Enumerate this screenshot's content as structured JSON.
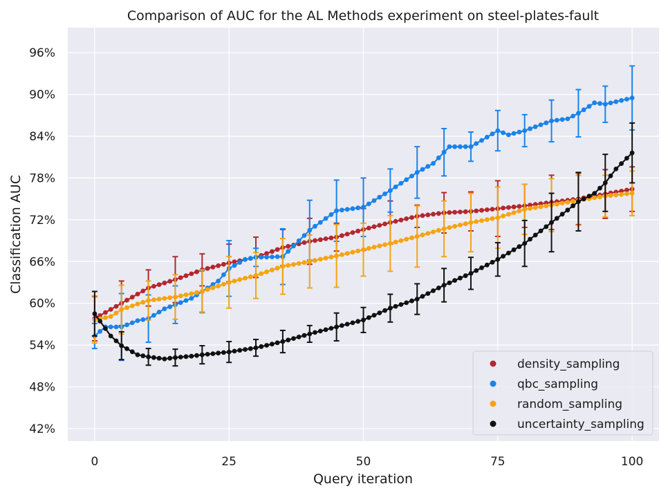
{
  "chart_data": {
    "type": "scatter",
    "title": "Comparison of AUC for the AL Methods experiment on steel-plates-fault",
    "xlabel": "Query iteration",
    "ylabel": "Classification AUC",
    "xlim": [
      -5,
      105
    ],
    "ylim": [
      40.2,
      99.6
    ],
    "xticks": [
      0,
      25,
      50,
      75,
      100
    ],
    "xtick_labels": [
      "0",
      "25",
      "50",
      "75",
      "100"
    ],
    "yticks": [
      42,
      48,
      54,
      60,
      66,
      72,
      78,
      84,
      90,
      96
    ],
    "ytick_labels": [
      "42%",
      "48%",
      "54%",
      "60%",
      "66%",
      "72%",
      "78%",
      "84%",
      "90%",
      "96%"
    ],
    "grid": true,
    "legend_position": "lower-right",
    "series": [
      {
        "name": "density_sampling",
        "color": "#b2282e",
        "anchors_x": [
          0,
          5,
          10,
          15,
          20,
          25,
          30,
          35,
          40,
          45,
          50,
          55,
          60,
          65,
          70,
          75,
          80,
          85,
          90,
          95,
          100
        ],
        "anchors_y": [
          57.8,
          60.0,
          62.2,
          63.4,
          64.8,
          65.8,
          66.6,
          68.0,
          68.9,
          69.5,
          70.6,
          71.6,
          72.5,
          73.0,
          73.2,
          73.6,
          74.0,
          74.5,
          75.0,
          75.7,
          76.4
        ],
        "error_x": [
          0,
          5,
          10,
          15,
          20,
          25,
          30,
          35,
          40,
          45,
          50,
          55,
          60,
          65,
          70,
          75,
          80,
          85,
          90,
          95,
          100
        ],
        "error_half": [
          3.2,
          3.2,
          2.6,
          3.3,
          2.3,
          2.7,
          2.9,
          2.6,
          3.3,
          2.0,
          3.0,
          3.1,
          1.6,
          2.9,
          2.8,
          4.0,
          3.1,
          3.9,
          3.7,
          3.5,
          3.2
        ]
      },
      {
        "name": "qbc_sampling",
        "color": "#1a83ea",
        "anchors_x": [
          0,
          2,
          5,
          8,
          10,
          13,
          15,
          18,
          20,
          23,
          25,
          28,
          30,
          35,
          40,
          45,
          50,
          55,
          60,
          63,
          66,
          70,
          72,
          75,
          77,
          80,
          85,
          88,
          90,
          93,
          95,
          100
        ],
        "anchors_y": [
          55.3,
          56.6,
          56.6,
          57.5,
          57.8,
          59.2,
          59.8,
          60.7,
          61.7,
          63.2,
          65.0,
          66.3,
          66.6,
          66.7,
          70.5,
          73.3,
          73.8,
          76.2,
          78.8,
          80.1,
          82.5,
          82.5,
          83.4,
          84.8,
          84.2,
          84.8,
          86.2,
          86.5,
          87.3,
          88.8,
          88.6,
          89.5
        ],
        "error_x": [
          0,
          5,
          10,
          15,
          20,
          25,
          30,
          35,
          40,
          45,
          50,
          55,
          60,
          65,
          70,
          75,
          80,
          85,
          90,
          95,
          100
        ],
        "error_half": [
          1.8,
          4.8,
          3.4,
          2.7,
          3.0,
          4.0,
          1.3,
          4.0,
          4.3,
          4.4,
          4.2,
          3.1,
          3.7,
          3.4,
          2.1,
          2.9,
          2.3,
          3.0,
          3.4,
          2.6,
          4.6
        ]
      },
      {
        "name": "random_sampling",
        "color": "#f5a412",
        "anchors_x": [
          0,
          3,
          5,
          8,
          10,
          15,
          20,
          25,
          30,
          35,
          40,
          45,
          50,
          55,
          60,
          65,
          70,
          75,
          80,
          85,
          90,
          95,
          100
        ],
        "anchors_y": [
          57.6,
          58.1,
          59.1,
          59.9,
          60.4,
          60.9,
          61.7,
          63.0,
          64.0,
          65.3,
          66.0,
          66.8,
          67.7,
          68.6,
          69.6,
          70.7,
          71.6,
          72.3,
          73.5,
          74.1,
          74.8,
          75.4,
          75.8
        ],
        "error_x": [
          0,
          5,
          10,
          15,
          20,
          25,
          30,
          35,
          40,
          45,
          50,
          55,
          60,
          65,
          70,
          75,
          80,
          85,
          90,
          95,
          100
        ],
        "error_half": [
          3.3,
          3.5,
          2.8,
          3.2,
          3.1,
          3.7,
          3.3,
          4.0,
          3.8,
          4.5,
          3.8,
          4.0,
          4.4,
          4.0,
          4.2,
          4.4,
          3.6,
          3.8,
          3.6,
          3.0,
          3.2
        ]
      },
      {
        "name": "uncertainty_sampling",
        "color": "#111111",
        "anchors_x": [
          0,
          3,
          5,
          8,
          10,
          13,
          15,
          18,
          20,
          25,
          30,
          35,
          40,
          45,
          50,
          55,
          60,
          65,
          70,
          75,
          80,
          85,
          90,
          93,
          95,
          97,
          100
        ],
        "anchors_y": [
          58.5,
          55.3,
          53.9,
          52.6,
          52.3,
          52.0,
          52.2,
          52.4,
          52.6,
          53.0,
          53.6,
          54.5,
          55.6,
          56.6,
          57.6,
          59.3,
          60.6,
          62.6,
          64.3,
          66.3,
          68.6,
          71.6,
          74.6,
          75.8,
          77.3,
          79.3,
          81.6
        ],
        "error_x": [
          0,
          5,
          10,
          15,
          20,
          25,
          30,
          35,
          40,
          45,
          50,
          55,
          60,
          65,
          70,
          75,
          80,
          85,
          90,
          95,
          100
        ],
        "error_half": [
          3.2,
          2.0,
          1.2,
          1.2,
          1.3,
          1.5,
          1.2,
          1.6,
          1.2,
          2.0,
          1.8,
          2.0,
          2.2,
          2.4,
          2.3,
          2.4,
          3.3,
          4.2,
          4.2,
          4.1,
          4.3
        ]
      }
    ]
  }
}
